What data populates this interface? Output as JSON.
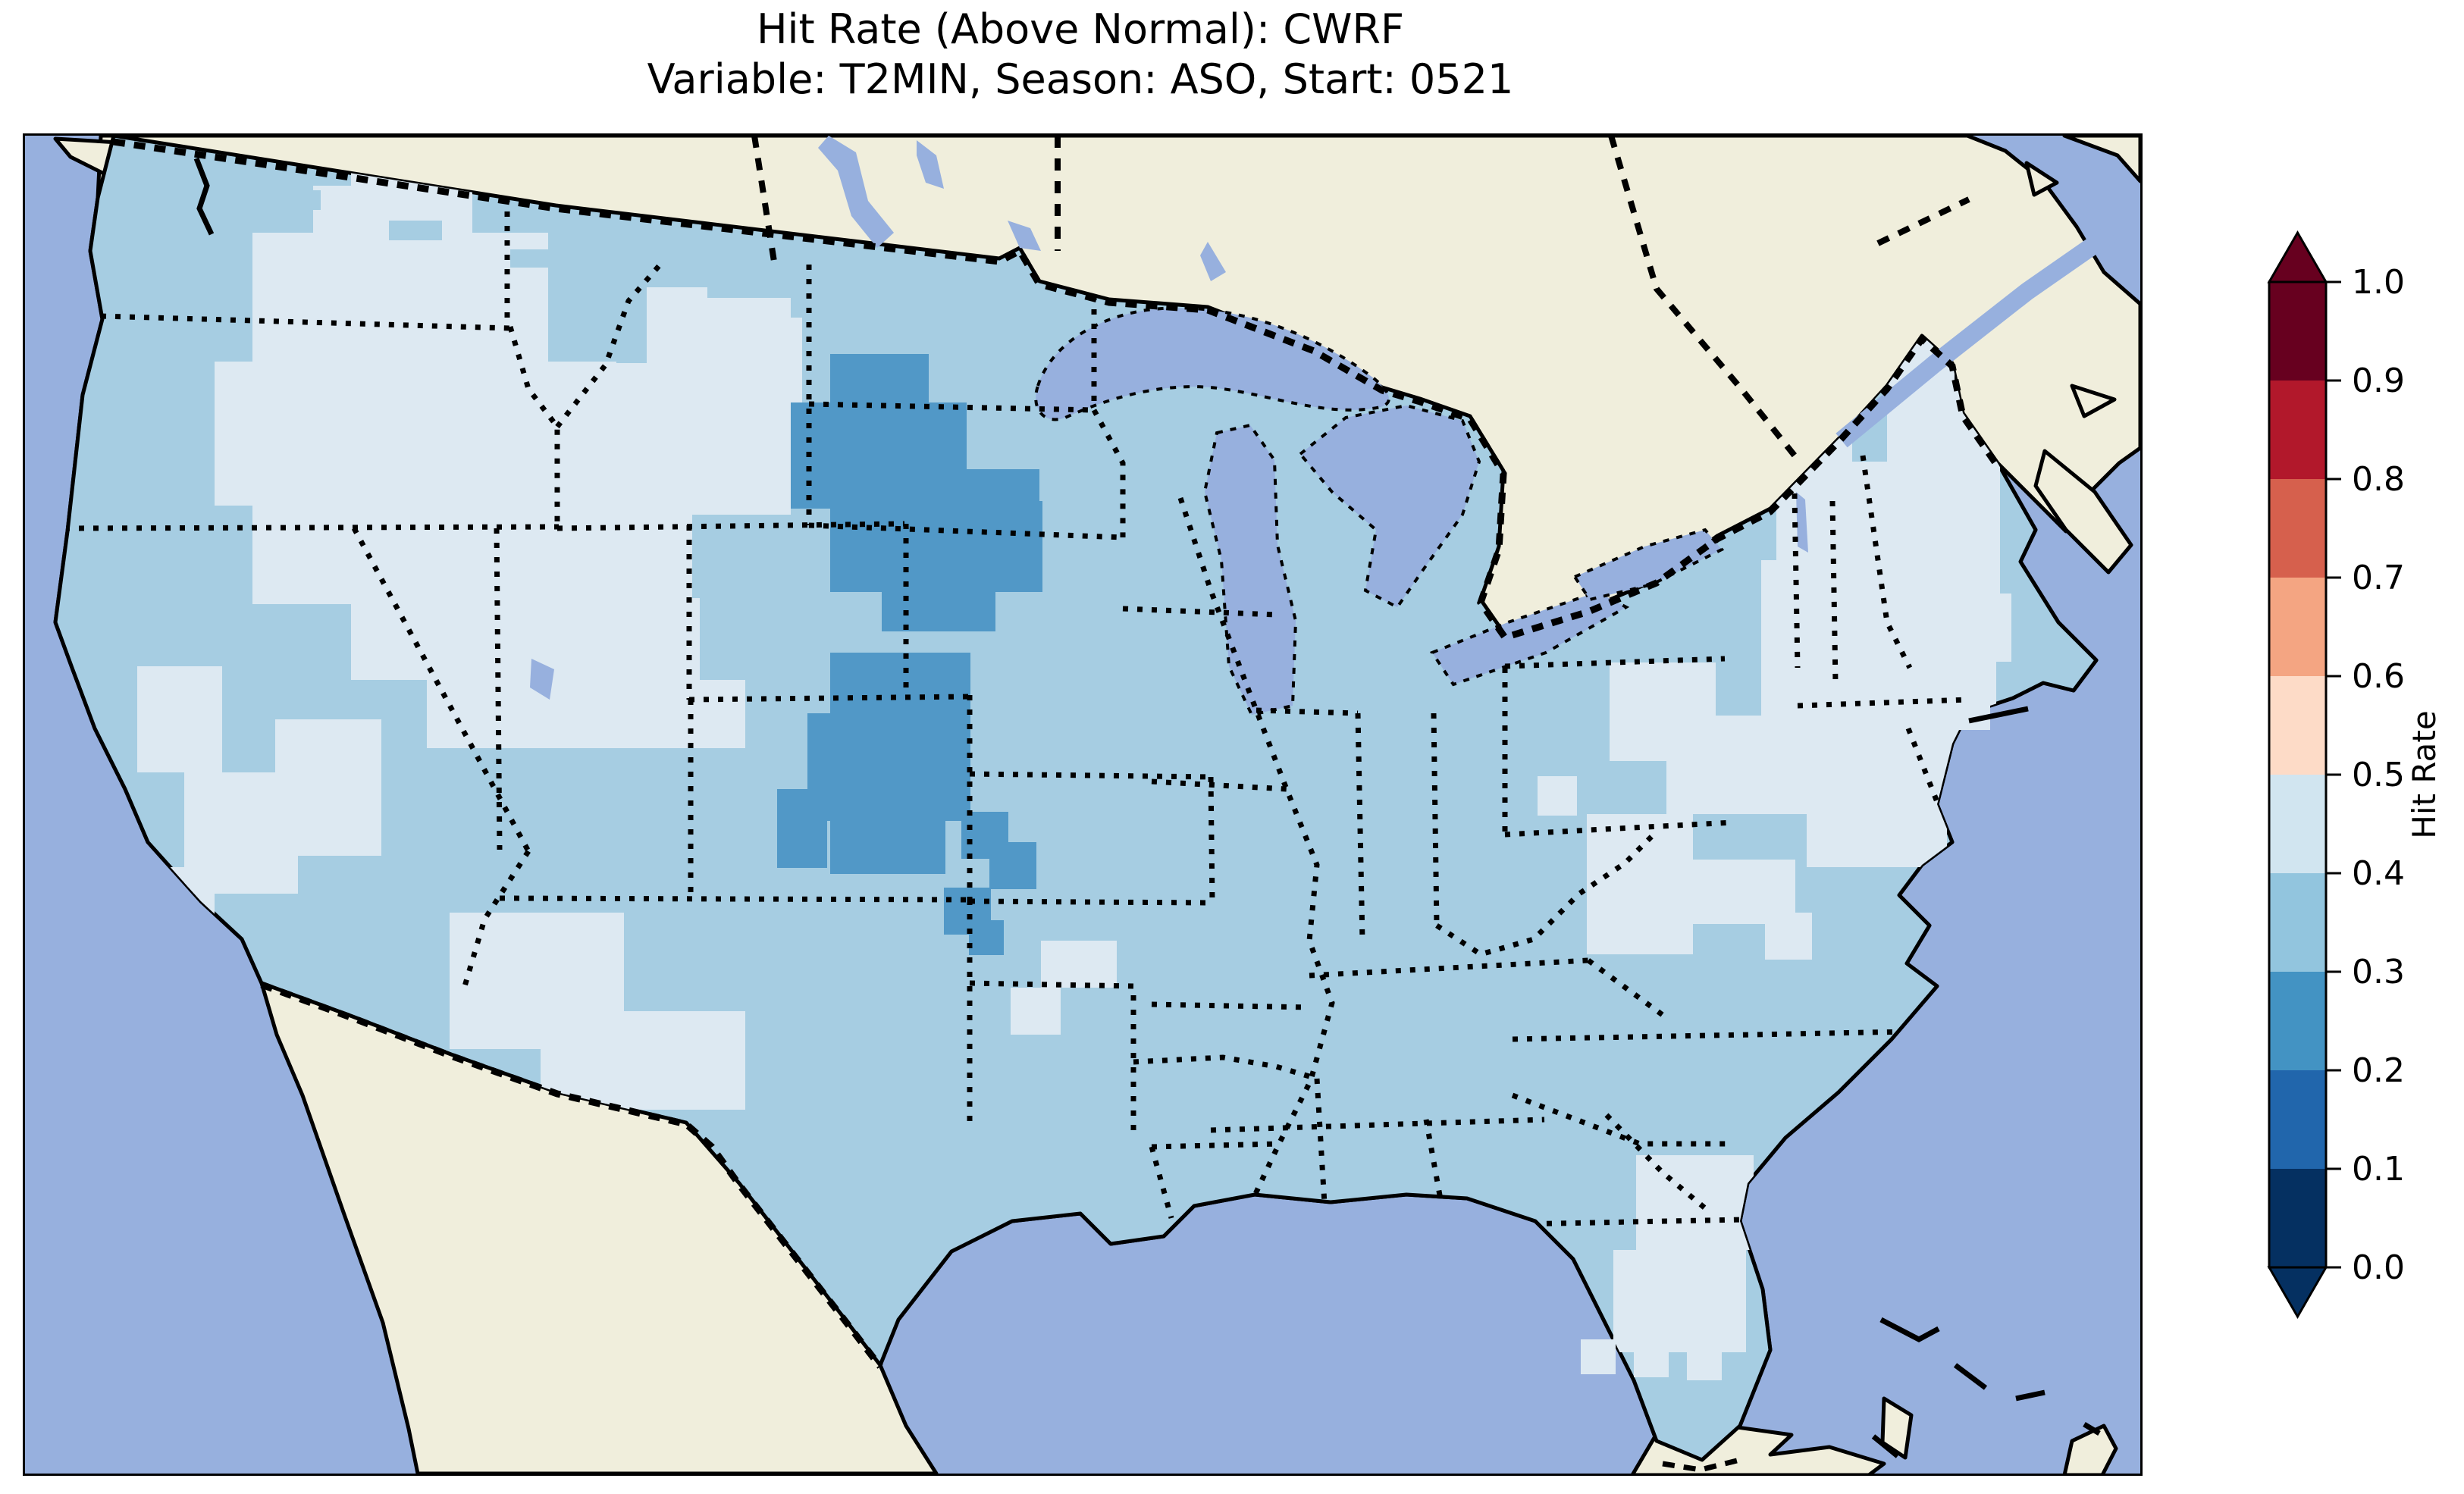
{
  "title": {
    "line1": "Hit Rate (Above Normal): CWRF",
    "line2": "Variable: T2MIN, Season: ASO, Start: 0521"
  },
  "colorbar": {
    "label": "Hit Rate",
    "tick_labels": [
      "1.0",
      "0.9",
      "0.8",
      "0.7",
      "0.6",
      "0.5",
      "0.4",
      "0.3",
      "0.2",
      "0.1",
      "0.0"
    ],
    "bin_colors_top_to_bottom": [
      "#67001f",
      "#b2182b",
      "#d6604d",
      "#f4a582",
      "#fddbc7",
      "#d1e5f0",
      "#92c5de",
      "#4393c3",
      "#2166ac",
      "#053061"
    ],
    "extend": "both",
    "colormap": "RdBu_r"
  },
  "map": {
    "colors": {
      "ocean": "#97b0de",
      "land": "#f0eedc",
      "base": "#a6cde2",
      "light": "#dde9f2",
      "dark": "#5198c7",
      "coast": "#000000"
    },
    "bin_for_color": {
      "base": "0.3-0.4",
      "light": "0.4-0.5",
      "dark": "0.2-0.3"
    }
  },
  "chart_data": {
    "type": "heatmap",
    "title": "Hit Rate (Above Normal): CWRF",
    "subtitle": "Variable: T2MIN, Season: ASO, Start: 0521",
    "variable": "T2MIN",
    "season": "ASO",
    "start": "0521",
    "model": "CWRF",
    "colorbar": {
      "label": "Hit Rate",
      "ticks": [
        1.0,
        0.9,
        0.8,
        0.7,
        0.6,
        0.5,
        0.4,
        0.3,
        0.2,
        0.1,
        0.0
      ],
      "bin_edges": [
        0.0,
        0.1,
        0.2,
        0.3,
        0.4,
        0.5,
        0.6,
        0.7,
        0.8,
        0.9,
        1.0
      ],
      "bin_colors_low_to_high": [
        "#053061",
        "#2166ac",
        "#4393c3",
        "#92c5de",
        "#d1e5f0",
        "#fddbc7",
        "#f4a582",
        "#d6604d",
        "#b2182b",
        "#67001f"
      ],
      "extend": "both",
      "legend_position": "right"
    },
    "map_extent": "Contiguous United States with southern Canada, northern Mexico, Gulf of Mexico, western Atlantic and eastern Pacific",
    "observations": {
      "base_bin": "Most of CONUS falls in the 0.3-0.4 hit-rate bin (light steel blue)",
      "lower_bin_0.2-0.3": [
        "western North Dakota / South Dakota into far eastern Montana",
        "central Colorado into western Kansas with a small chain toward the Oklahoma panhandle"
      ],
      "higher_bin_0.4-0.5": [
        "interior Pacific Northwest: eastern Washington and Oregon into southern Idaho",
        "patches of central California and Nevada",
        "southern Arizona - New Mexico border region",
        "Appalachian patches over Virginia / West Virginia / Kentucky / Tennessee",
        "northern New England (Maine, Vermont, New Hampshire, Massachusetts)",
        "southern Florida peninsula",
        "small patch in north-central Texas"
      ]
    },
    "regions": [
      {
        "name": "pacific-northwest-interior",
        "color_key": "light",
        "clip": true,
        "rects": [
          [
            380,
            66,
            210,
            62
          ],
          [
            300,
            128,
            390,
            170
          ],
          [
            250,
            298,
            530,
            190
          ],
          [
            300,
            488,
            460,
            130
          ],
          [
            430,
            618,
            330,
            100
          ],
          [
            530,
            718,
            420,
            90
          ],
          [
            640,
            300,
            240,
            310
          ],
          [
            820,
            200,
            190,
            300
          ],
          [
            700,
            610,
            190,
            110
          ],
          [
            905,
            240,
            120,
            130
          ]
        ]
      },
      {
        "name": "washington-north",
        "color_key": "light",
        "clip": true,
        "rects": [
          [
            430,
            20,
            130,
            46
          ]
        ]
      },
      {
        "name": "california-nevada",
        "color_key": "light",
        "clip": true,
        "rects": [
          [
            148,
            700,
            112,
            140
          ],
          [
            210,
            840,
            150,
            160
          ],
          [
            118,
            965,
            132,
            100
          ],
          [
            330,
            770,
            140,
            180
          ]
        ]
      },
      {
        "name": "arizona-new-mexico",
        "color_key": "light",
        "clip": true,
        "rects": [
          [
            560,
            1025,
            230,
            180
          ],
          [
            680,
            1155,
            270,
            130
          ],
          [
            770,
            1292,
            46,
            46
          ]
        ]
      },
      {
        "name": "texas-north",
        "color_key": "light",
        "clip": true,
        "rects": [
          [
            1340,
            1062,
            100,
            62
          ],
          [
            1300,
            1124,
            66,
            62
          ]
        ]
      },
      {
        "name": "appalachia",
        "color_key": "light",
        "clip": true,
        "rects": [
          [
            2090,
            695,
            140,
            130
          ],
          [
            2165,
            765,
            235,
            130
          ],
          [
            2060,
            895,
            140,
            185
          ],
          [
            2195,
            955,
            140,
            85
          ],
          [
            2295,
            1025,
            62,
            62
          ],
          [
            1995,
            845,
            52,
            52
          ]
        ]
      },
      {
        "name": "new-england",
        "color_key": "light",
        "clip": true,
        "rects": [
          [
            2350,
            210,
            195,
            150
          ],
          [
            2310,
            330,
            295,
            300
          ],
          [
            2290,
            560,
            310,
            320
          ],
          [
            2350,
            860,
            185,
            105
          ]
        ]
      },
      {
        "name": "florida-south",
        "color_key": "light",
        "clip": true,
        "rects": [
          [
            2125,
            1345,
            155,
            125
          ],
          [
            2095,
            1470,
            175,
            135
          ]
        ]
      },
      {
        "name": "florida-stray-cells",
        "color_key": "light",
        "clip": false,
        "rects": [
          [
            2052,
            1588,
            46,
            46
          ],
          [
            2122,
            1592,
            46,
            46
          ],
          [
            2192,
            1596,
            46,
            46
          ]
        ]
      },
      {
        "name": "maine-coast-cells",
        "color_key": "light",
        "clip": false,
        "rects": [
          [
            2560,
            604,
            60,
            90
          ],
          [
            2540,
            694,
            52,
            90
          ]
        ]
      },
      {
        "name": "dakotas-low",
        "color_key": "dark",
        "clip": true,
        "rects": [
          [
            1062,
            288,
            130,
            112
          ],
          [
            1010,
            352,
            232,
            140
          ],
          [
            1062,
            482,
            280,
            120
          ],
          [
            1130,
            592,
            150,
            62
          ],
          [
            1180,
            500,
            62,
            62
          ],
          [
            1220,
            440,
            118,
            132
          ]
        ]
      },
      {
        "name": "colorado-kansas-low",
        "color_key": "dark",
        "clip": true,
        "rects": [
          [
            1062,
            682,
            185,
            132
          ],
          [
            1032,
            762,
            215,
            142
          ],
          [
            992,
            862,
            66,
            104
          ],
          [
            1062,
            902,
            152,
            72
          ],
          [
            1235,
            892,
            62,
            62
          ],
          [
            1272,
            932,
            62,
            62
          ],
          [
            1212,
            992,
            62,
            62
          ],
          [
            1245,
            1035,
            46,
            46
          ]
        ]
      },
      {
        "name": "canada-border-cells",
        "color_key": "base",
        "clip": false,
        "rects": [
          [
            150,
            30,
            70,
            28
          ],
          [
            320,
            72,
            70,
            26
          ],
          [
            480,
            112,
            70,
            26
          ],
          [
            640,
            150,
            80,
            24
          ],
          [
            900,
            192,
            110,
            22
          ],
          [
            1150,
            208,
            130,
            20
          ]
        ]
      },
      {
        "name": "maine-top-cells",
        "color_key": "base",
        "clip": true,
        "rects": [
          [
            2410,
            150,
            46,
            80
          ],
          [
            2410,
            330,
            46,
            100
          ]
        ]
      }
    ]
  }
}
